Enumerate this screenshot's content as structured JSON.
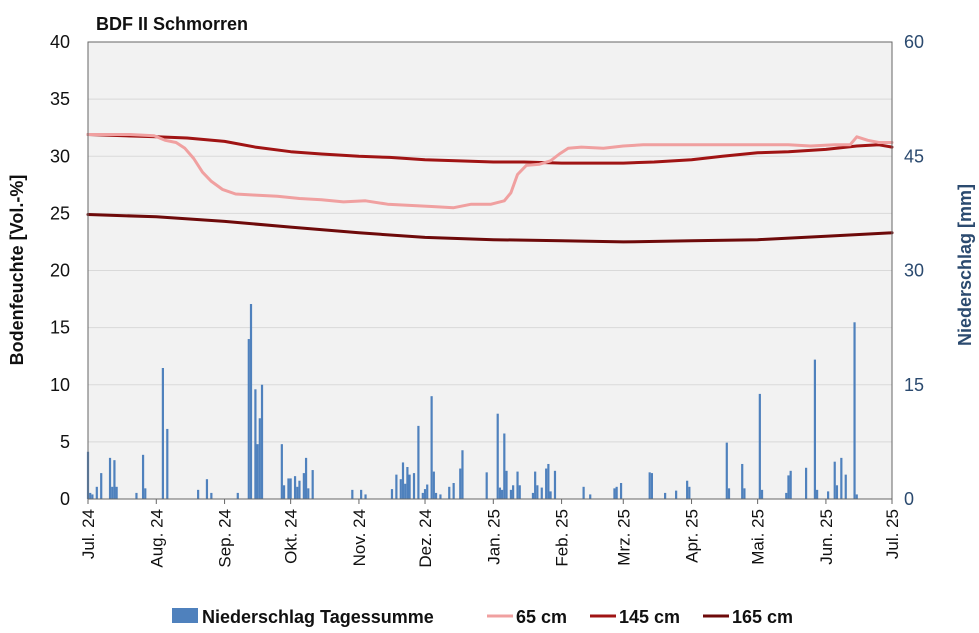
{
  "chart_data": {
    "type": "line",
    "title": "BDF II Schmorren",
    "ylabel_left": "Bodenfeuchte [Vol.-%]",
    "ylabel_right": "Niederschlag [mm]",
    "ylim_left": [
      0,
      40
    ],
    "yticks_left": [
      "0",
      "5",
      "10",
      "15",
      "20",
      "25",
      "30",
      "35",
      "40"
    ],
    "ylim_right": [
      0,
      60
    ],
    "yticks_right": [
      "0",
      "15",
      "30",
      "45",
      "60"
    ],
    "x_range": [
      "2024-07-01",
      "2025-07-01"
    ],
    "x_ticks": [
      {
        "date": "2024-07-01",
        "label": "Jul. 24"
      },
      {
        "date": "2024-08-01",
        "label": "Aug. 24"
      },
      {
        "date": "2024-09-01",
        "label": "Sep. 24"
      },
      {
        "date": "2024-10-01",
        "label": "Okt. 24"
      },
      {
        "date": "2024-11-01",
        "label": "Nov. 24"
      },
      {
        "date": "2024-12-01",
        "label": "Dez. 24"
      },
      {
        "date": "2025-01-01",
        "label": "Jan. 25"
      },
      {
        "date": "2025-02-01",
        "label": "Feb. 25"
      },
      {
        "date": "2025-03-01",
        "label": "Mrz. 25"
      },
      {
        "date": "2025-04-01",
        "label": "Apr. 25"
      },
      {
        "date": "2025-05-01",
        "label": "Mai. 25"
      },
      {
        "date": "2025-06-01",
        "label": "Jun. 25"
      },
      {
        "date": "2025-07-01",
        "label": "Jul. 25"
      }
    ],
    "grid": true,
    "legend_position": "bottom",
    "colors": {
      "precip": "#4f81bd",
      "s65": "#f0a0a0",
      "s145": "#a01414",
      "s165": "#6e0a0a",
      "plot_bg": "#f2f2f2",
      "right_axis": "#2b4a6f"
    },
    "precipitation": {
      "name": "Niederschlag Tagessumme",
      "axis": "right",
      "points": [
        [
          "2024-07-01",
          6.2
        ],
        [
          "2024-07-02",
          0.8
        ],
        [
          "2024-07-03",
          0.6
        ],
        [
          "2024-07-05",
          1.6
        ],
        [
          "2024-07-07",
          3.4
        ],
        [
          "2024-07-11",
          5.4
        ],
        [
          "2024-07-12",
          1.6
        ],
        [
          "2024-07-13",
          5.1
        ],
        [
          "2024-07-14",
          1.6
        ],
        [
          "2024-07-23",
          0.8
        ],
        [
          "2024-07-26",
          5.8
        ],
        [
          "2024-07-27",
          1.4
        ],
        [
          "2024-08-04",
          17.2
        ],
        [
          "2024-08-06",
          9.2
        ],
        [
          "2024-08-20",
          1.2
        ],
        [
          "2024-08-24",
          2.6
        ],
        [
          "2024-08-26",
          0.8
        ],
        [
          "2024-09-07",
          0.8
        ],
        [
          "2024-09-12",
          21.0
        ],
        [
          "2024-09-13",
          25.6
        ],
        [
          "2024-09-15",
          14.4
        ],
        [
          "2024-09-16",
          7.2
        ],
        [
          "2024-09-17",
          10.6
        ],
        [
          "2024-09-18",
          15.0
        ],
        [
          "2024-09-27",
          7.2
        ],
        [
          "2024-09-28",
          1.8
        ],
        [
          "2024-09-30",
          2.7
        ],
        [
          "2024-10-01",
          2.7
        ],
        [
          "2024-10-03",
          3.0
        ],
        [
          "2024-10-04",
          1.6
        ],
        [
          "2024-10-05",
          2.4
        ],
        [
          "2024-10-07",
          3.4
        ],
        [
          "2024-10-08",
          5.4
        ],
        [
          "2024-10-09",
          1.4
        ],
        [
          "2024-10-11",
          3.8
        ],
        [
          "2024-10-29",
          1.2
        ],
        [
          "2024-11-02",
          1.2
        ],
        [
          "2024-11-04",
          0.6
        ],
        [
          "2024-11-16",
          1.3
        ],
        [
          "2024-11-18",
          3.2
        ],
        [
          "2024-11-20",
          2.6
        ],
        [
          "2024-11-21",
          4.8
        ],
        [
          "2024-11-22",
          2.0
        ],
        [
          "2024-11-23",
          4.2
        ],
        [
          "2024-11-24",
          3.2
        ],
        [
          "2024-11-26",
          3.4
        ],
        [
          "2024-11-28",
          9.6
        ],
        [
          "2024-11-30",
          0.8
        ],
        [
          "2024-12-01",
          1.3
        ],
        [
          "2024-12-02",
          1.9
        ],
        [
          "2024-12-04",
          13.5
        ],
        [
          "2024-12-05",
          3.6
        ],
        [
          "2024-12-06",
          0.8
        ],
        [
          "2024-12-08",
          0.6
        ],
        [
          "2024-12-12",
          1.6
        ],
        [
          "2024-12-14",
          2.1
        ],
        [
          "2024-12-17",
          4.0
        ],
        [
          "2024-12-18",
          6.4
        ],
        [
          "2024-12-29",
          3.5
        ],
        [
          "2025-01-03",
          11.2
        ],
        [
          "2025-01-04",
          1.5
        ],
        [
          "2025-01-05",
          1.2
        ],
        [
          "2025-01-06",
          8.6
        ],
        [
          "2025-01-07",
          3.7
        ],
        [
          "2025-01-09",
          1.2
        ],
        [
          "2025-01-10",
          1.8
        ],
        [
          "2025-01-12",
          3.6
        ],
        [
          "2025-01-13",
          1.8
        ],
        [
          "2025-01-19",
          0.8
        ],
        [
          "2025-01-20",
          3.6
        ],
        [
          "2025-01-21",
          1.8
        ],
        [
          "2025-01-23",
          1.5
        ],
        [
          "2025-01-25",
          4.0
        ],
        [
          "2025-01-26",
          4.6
        ],
        [
          "2025-01-27",
          1.0
        ],
        [
          "2025-01-29",
          3.7
        ],
        [
          "2025-02-11",
          1.6
        ],
        [
          "2025-02-14",
          0.6
        ],
        [
          "2025-02-25",
          1.4
        ],
        [
          "2025-02-26",
          1.6
        ],
        [
          "2025-02-28",
          2.1
        ],
        [
          "2025-03-13",
          3.5
        ],
        [
          "2025-03-14",
          3.4
        ],
        [
          "2025-03-20",
          0.8
        ],
        [
          "2025-03-25",
          1.1
        ],
        [
          "2025-03-30",
          2.4
        ],
        [
          "2025-03-31",
          1.6
        ],
        [
          "2025-04-17",
          7.4
        ],
        [
          "2025-04-18",
          1.4
        ],
        [
          "2025-04-24",
          4.6
        ],
        [
          "2025-04-25",
          1.4
        ],
        [
          "2025-05-02",
          13.8
        ],
        [
          "2025-05-03",
          1.2
        ],
        [
          "2025-05-14",
          0.8
        ],
        [
          "2025-05-15",
          3.1
        ],
        [
          "2025-05-16",
          3.7
        ],
        [
          "2025-05-23",
          4.1
        ],
        [
          "2025-05-27",
          18.3
        ],
        [
          "2025-05-28",
          1.2
        ],
        [
          "2025-06-02",
          1.0
        ],
        [
          "2025-06-05",
          4.9
        ],
        [
          "2025-06-06",
          1.8
        ],
        [
          "2025-06-08",
          5.4
        ],
        [
          "2025-06-10",
          3.2
        ],
        [
          "2025-06-14",
          23.2
        ],
        [
          "2025-06-15",
          0.6
        ]
      ]
    },
    "series": [
      {
        "name": "65 cm",
        "axis": "left",
        "points": [
          [
            "2024-07-01",
            31.9
          ],
          [
            "2024-07-10",
            31.9
          ],
          [
            "2024-07-20",
            31.9
          ],
          [
            "2024-07-31",
            31.8
          ],
          [
            "2024-08-05",
            31.4
          ],
          [
            "2024-08-10",
            31.2
          ],
          [
            "2024-08-14",
            30.7
          ],
          [
            "2024-08-18",
            29.8
          ],
          [
            "2024-08-22",
            28.6
          ],
          [
            "2024-08-26",
            27.8
          ],
          [
            "2024-08-31",
            27.1
          ],
          [
            "2024-09-06",
            26.7
          ],
          [
            "2024-09-15",
            26.6
          ],
          [
            "2024-09-25",
            26.5
          ],
          [
            "2024-10-05",
            26.3
          ],
          [
            "2024-10-15",
            26.2
          ],
          [
            "2024-10-25",
            26.0
          ],
          [
            "2024-11-04",
            26.1
          ],
          [
            "2024-11-14",
            25.8
          ],
          [
            "2024-11-24",
            25.7
          ],
          [
            "2024-12-04",
            25.6
          ],
          [
            "2024-12-14",
            25.5
          ],
          [
            "2024-12-22",
            25.8
          ],
          [
            "2024-12-31",
            25.8
          ],
          [
            "2025-01-06",
            26.1
          ],
          [
            "2025-01-09",
            26.8
          ],
          [
            "2025-01-12",
            28.4
          ],
          [
            "2025-01-16",
            29.2
          ],
          [
            "2025-01-22",
            29.3
          ],
          [
            "2025-01-27",
            29.6
          ],
          [
            "2025-01-31",
            30.2
          ],
          [
            "2025-02-04",
            30.7
          ],
          [
            "2025-02-10",
            30.8
          ],
          [
            "2025-02-20",
            30.7
          ],
          [
            "2025-03-01",
            30.9
          ],
          [
            "2025-03-10",
            31.0
          ],
          [
            "2025-03-20",
            31.0
          ],
          [
            "2025-04-01",
            31.0
          ],
          [
            "2025-04-15",
            31.0
          ],
          [
            "2025-05-01",
            31.0
          ],
          [
            "2025-05-15",
            31.0
          ],
          [
            "2025-05-25",
            30.9
          ],
          [
            "2025-06-05",
            31.0
          ],
          [
            "2025-06-12",
            31.0
          ],
          [
            "2025-06-15",
            31.7
          ],
          [
            "2025-06-20",
            31.4
          ],
          [
            "2025-06-25",
            31.2
          ],
          [
            "2025-07-01",
            31.2
          ]
        ]
      },
      {
        "name": "145 cm",
        "axis": "left",
        "points": [
          [
            "2024-07-01",
            31.9
          ],
          [
            "2024-08-01",
            31.7
          ],
          [
            "2024-08-15",
            31.6
          ],
          [
            "2024-09-01",
            31.3
          ],
          [
            "2024-09-15",
            30.8
          ],
          [
            "2024-10-01",
            30.4
          ],
          [
            "2024-10-15",
            30.2
          ],
          [
            "2024-11-01",
            30.0
          ],
          [
            "2024-11-15",
            29.9
          ],
          [
            "2024-12-01",
            29.7
          ],
          [
            "2024-12-15",
            29.6
          ],
          [
            "2025-01-01",
            29.5
          ],
          [
            "2025-01-15",
            29.5
          ],
          [
            "2025-02-01",
            29.4
          ],
          [
            "2025-02-15",
            29.4
          ],
          [
            "2025-03-01",
            29.4
          ],
          [
            "2025-03-15",
            29.5
          ],
          [
            "2025-04-01",
            29.7
          ],
          [
            "2025-04-15",
            30.0
          ],
          [
            "2025-05-01",
            30.3
          ],
          [
            "2025-05-15",
            30.4
          ],
          [
            "2025-06-01",
            30.6
          ],
          [
            "2025-06-15",
            30.9
          ],
          [
            "2025-06-25",
            31.0
          ],
          [
            "2025-07-01",
            30.8
          ]
        ]
      },
      {
        "name": "165 cm",
        "axis": "left",
        "points": [
          [
            "2024-07-01",
            24.9
          ],
          [
            "2024-08-01",
            24.7
          ],
          [
            "2024-09-01",
            24.3
          ],
          [
            "2024-10-01",
            23.8
          ],
          [
            "2024-11-01",
            23.3
          ],
          [
            "2024-12-01",
            22.9
          ],
          [
            "2025-01-01",
            22.7
          ],
          [
            "2025-02-01",
            22.6
          ],
          [
            "2025-03-01",
            22.5
          ],
          [
            "2025-04-01",
            22.6
          ],
          [
            "2025-05-01",
            22.7
          ],
          [
            "2025-06-01",
            23.0
          ],
          [
            "2025-07-01",
            23.3
          ]
        ]
      }
    ]
  }
}
